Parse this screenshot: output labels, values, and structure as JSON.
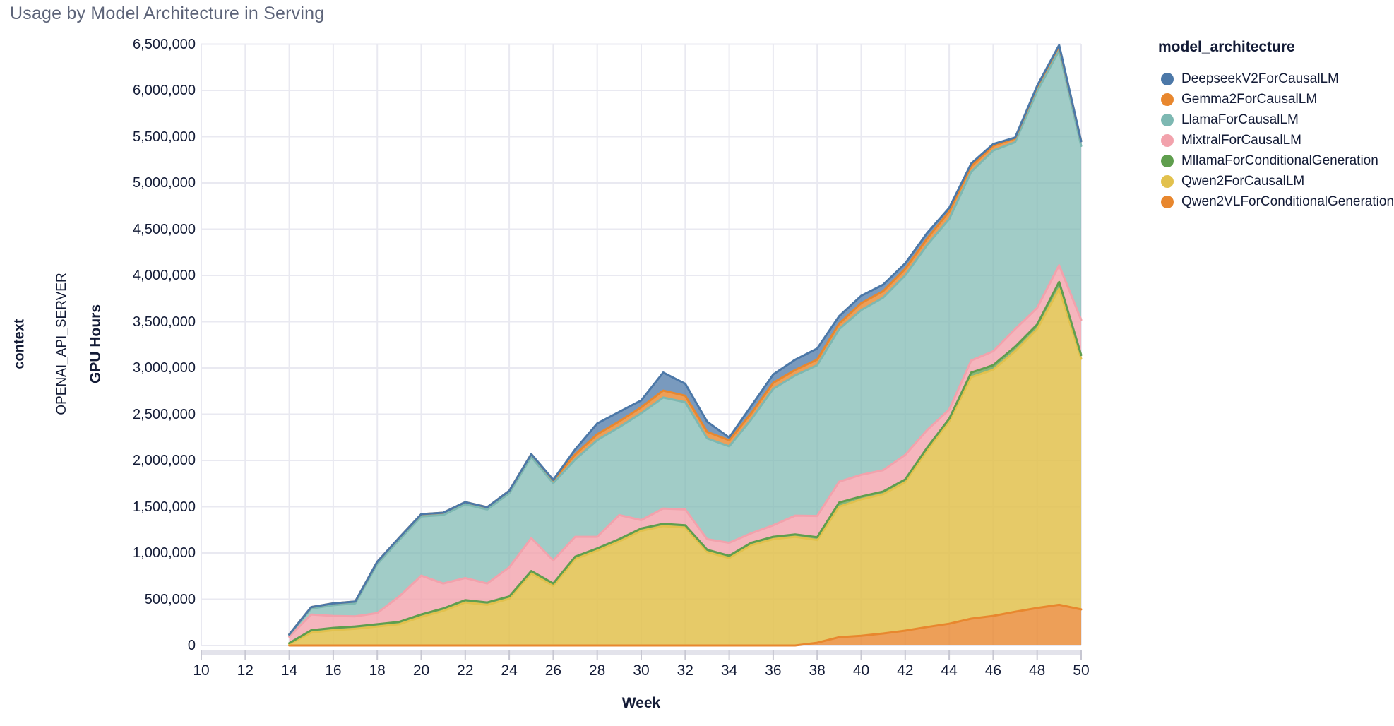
{
  "title": "Usage by Model Architecture in Serving",
  "facet": {
    "outer_label": "context",
    "inner_label": "OPENAI_API_SERVER"
  },
  "axes": {
    "x": {
      "title": "Week",
      "ticks": [
        "10",
        "12",
        "14",
        "16",
        "18",
        "20",
        "22",
        "24",
        "26",
        "28",
        "30",
        "32",
        "34",
        "36",
        "38",
        "40",
        "42",
        "44",
        "46",
        "48",
        "50"
      ],
      "range": [
        10,
        50
      ]
    },
    "y": {
      "title": "GPU Hours",
      "ticks": [
        "0",
        "500,000",
        "1,000,000",
        "1,500,000",
        "2,000,000",
        "2,500,000",
        "3,000,000",
        "3,500,000",
        "4,000,000",
        "4,500,000",
        "5,000,000",
        "5,500,000",
        "6,000,000",
        "6,500,000"
      ],
      "range": [
        0,
        6500000
      ]
    }
  },
  "legend": {
    "title": "model_architecture",
    "items": [
      {
        "label": "DeepseekV2ForCausalLM",
        "color": "#4c78a8"
      },
      {
        "label": "Gemma2ForCausalLM",
        "color": "#e8872e"
      },
      {
        "label": "LlamaForCausalLM",
        "color": "#7db8b2"
      },
      {
        "label": "MixtralForCausalLM",
        "color": "#f2a2ac"
      },
      {
        "label": "MllamaForConditionalGeneration",
        "color": "#5f9e4e"
      },
      {
        "label": "Qwen2ForCausalLM",
        "color": "#e2c14d"
      },
      {
        "label": "Qwen2VLForConditionalGeneration",
        "color": "#e8872e"
      }
    ]
  },
  "chart_data": {
    "type": "area",
    "stacked": true,
    "stack_order": "bottom-to-top",
    "title": "Usage by Model Architecture in Serving",
    "xlabel": "Week",
    "ylabel": "GPU Hours",
    "xlim": [
      10,
      50
    ],
    "ylim": [
      0,
      6500000
    ],
    "grid": true,
    "legend_position": "right",
    "x": [
      14,
      15,
      16,
      17,
      18,
      19,
      20,
      21,
      22,
      23,
      24,
      25,
      26,
      27,
      28,
      29,
      30,
      31,
      32,
      33,
      34,
      35,
      36,
      37,
      38,
      39,
      40,
      41,
      42,
      43,
      44,
      45,
      46,
      47,
      48,
      49,
      50
    ],
    "series": [
      {
        "name": "Qwen2VLForConditionalGeneration",
        "color": "#e8872e",
        "fill_opacity": 0.8,
        "values": [
          0,
          0,
          0,
          0,
          0,
          0,
          0,
          0,
          0,
          0,
          0,
          0,
          0,
          0,
          0,
          0,
          0,
          0,
          0,
          0,
          0,
          0,
          0,
          0,
          30000,
          90000,
          105000,
          130000,
          160000,
          200000,
          235000,
          290000,
          320000,
          365000,
          405000,
          440000,
          390000
        ]
      },
      {
        "name": "Qwen2ForCausalLM",
        "color": "#e2c14d",
        "fill_opacity": 0.85,
        "values": [
          15000,
          140000,
          165000,
          180000,
          205000,
          230000,
          310000,
          375000,
          465000,
          440000,
          505000,
          780000,
          645000,
          935000,
          1025000,
          1125000,
          1240000,
          1290000,
          1275000,
          1010000,
          945000,
          1085000,
          1150000,
          1175000,
          1110000,
          1410000,
          1475000,
          1505000,
          1605000,
          1910000,
          2185000,
          2610000,
          2660000,
          2815000,
          3015000,
          3415000,
          2710000
        ]
      },
      {
        "name": "MllamaForConditionalGeneration",
        "color": "#5f9e4e",
        "fill_opacity": 0.75,
        "values": [
          10000,
          25000,
          25000,
          25000,
          25000,
          25000,
          25000,
          25000,
          25000,
          25000,
          25000,
          25000,
          25000,
          25000,
          25000,
          25000,
          25000,
          25000,
          25000,
          25000,
          25000,
          25000,
          25000,
          25000,
          30000,
          45000,
          30000,
          30000,
          30000,
          30000,
          30000,
          50000,
          50000,
          50000,
          50000,
          75000,
          40000
        ]
      },
      {
        "name": "MixtralForCausalLM",
        "color": "#f2a2ac",
        "fill_opacity": 0.8,
        "values": [
          70000,
          170000,
          130000,
          110000,
          120000,
          275000,
          420000,
          270000,
          240000,
          205000,
          315000,
          356000,
          250000,
          215000,
          125000,
          260000,
          90000,
          165000,
          170000,
          114000,
          140000,
          103000,
          124000,
          204000,
          230000,
          225000,
          235000,
          230000,
          265000,
          190000,
          100000,
          130000,
          150000,
          190000,
          180000,
          180000,
          380000
        ]
      },
      {
        "name": "LlamaForCausalLM",
        "color": "#7db8b2",
        "fill_opacity": 0.72,
        "values": [
          20000,
          65000,
          115000,
          140000,
          530000,
          610000,
          640000,
          740000,
          795000,
          800000,
          800000,
          877000,
          835000,
          835000,
          1045000,
          950000,
          1155000,
          1200000,
          1160000,
          1090000,
          1043000,
          1230000,
          1475000,
          1515000,
          1630000,
          1650000,
          1780000,
          1865000,
          1940000,
          2000000,
          2060000,
          2040000,
          2170000,
          2020000,
          2340000,
          2320000,
          1880000
        ]
      },
      {
        "name": "Gemma2ForCausalLM",
        "color": "#e8872e",
        "fill_opacity": 0.8,
        "values": [
          5000,
          15000,
          20000,
          20000,
          25000,
          25000,
          25000,
          25000,
          25000,
          25000,
          27000,
          31000,
          31000,
          55000,
          63000,
          62000,
          65000,
          75000,
          70000,
          70000,
          65000,
          67000,
          65000,
          60000,
          60000,
          60000,
          75000,
          70000,
          70000,
          70000,
          80000,
          60000,
          50000,
          40000,
          50000,
          50000,
          50000
        ]
      },
      {
        "name": "DeepseekV2ForCausalLM",
        "color": "#4c78a8",
        "fill_opacity": 0.75,
        "values": [
          0,
          0,
          0,
          0,
          0,
          0,
          0,
          0,
          0,
          0,
          0,
          0,
          5000,
          55000,
          117000,
          103000,
          75000,
          195000,
          130000,
          110000,
          30000,
          78000,
          90000,
          110000,
          120000,
          80000,
          80000,
          70000,
          60000,
          60000,
          40000,
          30000,
          20000,
          10000,
          10000,
          10000,
          0
        ]
      }
    ]
  },
  "style": {
    "grid_color": "#e9e9f1",
    "axis_band_color": "#e3e3eb",
    "tick_mark_color": "#c7c7d2",
    "text_color": "#131b36",
    "title_color": "#5d6479"
  }
}
